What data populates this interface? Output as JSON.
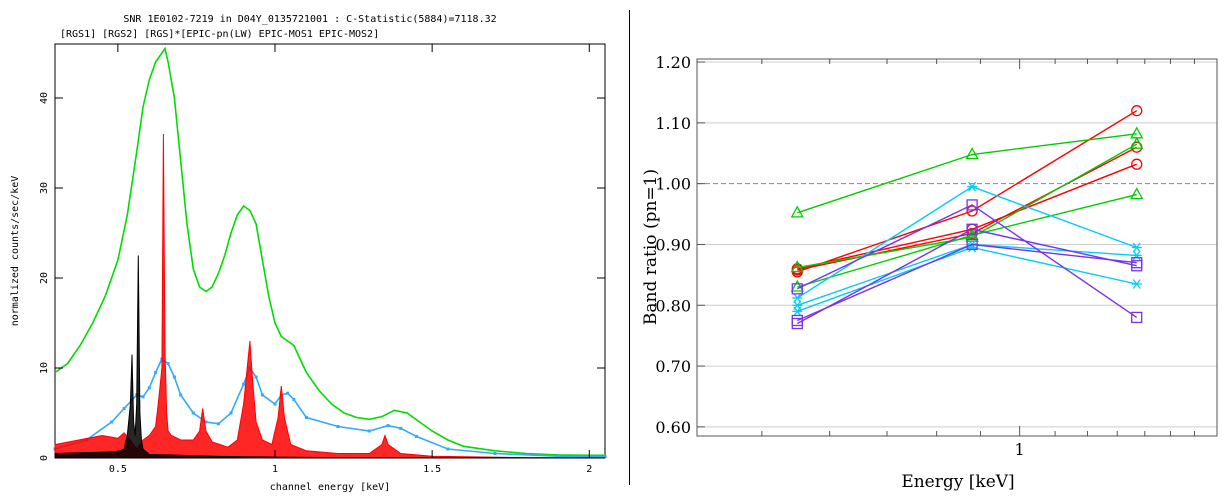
{
  "chart_data": [
    {
      "type": "line",
      "title": "SNR 1E0102-7219 in D04Y_0135721001 : C-Statistic(5884)=7118.32",
      "subtitle": "[RGS1] [RGS2] [RGS]*[EPIC-pn(LW) EPIC-MOS1 EPIC-MOS2]",
      "xlabel": "channel energy [keV]",
      "ylabel": "normalized counts/sec/keV",
      "xlim": [
        0.3,
        2.05
      ],
      "ylim": [
        0,
        46
      ],
      "x_ticks": [
        "0.5",
        "1",
        "1.5",
        "2"
      ],
      "x_tick_values": [
        0.5,
        1.0,
        1.5,
        2.0
      ],
      "y_ticks": [
        "0",
        "10",
        "20",
        "30",
        "40"
      ],
      "y_tick_values": [
        0,
        10,
        20,
        30,
        40
      ],
      "grid": false,
      "series": [
        {
          "color": "#00dd00",
          "x": [
            0.3,
            0.34,
            0.38,
            0.42,
            0.46,
            0.5,
            0.53,
            0.56,
            0.58,
            0.6,
            0.62,
            0.64,
            0.65,
            0.66,
            0.68,
            0.7,
            0.72,
            0.74,
            0.76,
            0.78,
            0.8,
            0.82,
            0.84,
            0.86,
            0.88,
            0.9,
            0.92,
            0.94,
            0.96,
            0.98,
            1.0,
            1.02,
            1.04,
            1.06,
            1.08,
            1.1,
            1.14,
            1.18,
            1.22,
            1.26,
            1.3,
            1.34,
            1.38,
            1.42,
            1.46,
            1.5,
            1.55,
            1.6,
            1.7,
            1.8,
            1.9,
            2.0,
            2.05
          ],
          "y": [
            9.5,
            10.5,
            12.5,
            15,
            18,
            22,
            27,
            34,
            39,
            42,
            44,
            45,
            45.5,
            44,
            40,
            33,
            26,
            21,
            19,
            18.5,
            19,
            20.5,
            22.5,
            25,
            27,
            28,
            27.5,
            26,
            22,
            18,
            15,
            13.5,
            13,
            12.5,
            11,
            9.5,
            7.5,
            6,
            5,
            4.5,
            4.3,
            4.6,
            5.3,
            5,
            4,
            3,
            2,
            1.3,
            0.8,
            0.5,
            0.35,
            0.3,
            0.3
          ]
        },
        {
          "color": "#33aaff",
          "x": [
            0.3,
            0.4,
            0.48,
            0.52,
            0.56,
            0.58,
            0.6,
            0.62,
            0.64,
            0.66,
            0.68,
            0.7,
            0.74,
            0.78,
            0.82,
            0.86,
            0.9,
            0.92,
            0.94,
            0.96,
            1.0,
            1.02,
            1.04,
            1.06,
            1.1,
            1.2,
            1.3,
            1.36,
            1.4,
            1.45,
            1.55,
            1.7,
            1.9,
            2.05
          ],
          "y": [
            1,
            2,
            4,
            5.5,
            7,
            6.8,
            7.8,
            9.5,
            11,
            10.5,
            9,
            7,
            5,
            4,
            3.8,
            5,
            8.2,
            10,
            9,
            7,
            6,
            7,
            7.2,
            6.5,
            4.5,
            3.5,
            3,
            3.6,
            3.3,
            2.4,
            1,
            0.5,
            0.2,
            0.15
          ]
        },
        {
          "color": "#ff0000",
          "x": [
            0.3,
            0.45,
            0.5,
            0.52,
            0.54,
            0.55,
            0.56,
            0.57,
            0.58,
            0.6,
            0.62,
            0.63,
            0.64,
            0.645,
            0.65,
            0.655,
            0.66,
            0.67,
            0.7,
            0.74,
            0.76,
            0.77,
            0.78,
            0.8,
            0.85,
            0.88,
            0.9,
            0.92,
            0.93,
            0.94,
            0.96,
            0.99,
            1.01,
            1.02,
            1.03,
            1.05,
            1.1,
            1.2,
            1.3,
            1.34,
            1.35,
            1.36,
            1.4,
            1.5,
            1.8,
            2.05
          ],
          "y": [
            1.5,
            2.5,
            2.2,
            2.8,
            2,
            1.5,
            1,
            1.5,
            2,
            2.5,
            3.5,
            6.5,
            10,
            36,
            12,
            5,
            3,
            2.5,
            2,
            2,
            3,
            5.5,
            3,
            1.8,
            1.2,
            2,
            6,
            13,
            8,
            4,
            2,
            1.5,
            4.5,
            8,
            4.5,
            1.5,
            0.8,
            0.5,
            0.5,
            1.5,
            2.5,
            1.5,
            0.5,
            0.2,
            0.05,
            0.05
          ]
        },
        {
          "color": "#000000",
          "x": [
            0.3,
            0.5,
            0.52,
            0.53,
            0.54,
            0.545,
            0.55,
            0.555,
            0.56,
            0.565,
            0.57,
            0.575,
            0.58,
            0.6,
            0.7,
            0.8,
            1.0,
            1.2,
            2.05
          ],
          "y": [
            0.5,
            0.7,
            1,
            2.5,
            6,
            11.5,
            4,
            2.5,
            6,
            22.5,
            5,
            2,
            1,
            0.4,
            0.3,
            0.2,
            0.1,
            0.05,
            0
          ]
        }
      ]
    },
    {
      "type": "line",
      "xlabel": "Energy [keV]",
      "ylabel": "Band ratio (pn=1)",
      "xlim": [
        0.42,
        1.7
      ],
      "ylim": [
        0.585,
        1.205
      ],
      "x_ticks": [
        "1"
      ],
      "x_tick_values": [
        1.0
      ],
      "y_ticks": [
        "0.60",
        "0.70",
        "0.80",
        "0.90",
        "1.00",
        "1.10",
        "1.20"
      ],
      "y_tick_values": [
        0.6,
        0.7,
        0.8,
        0.9,
        1.0,
        1.1,
        1.2
      ],
      "grid": true,
      "reference_line": 1.0,
      "x": [
        0.55,
        0.88,
        1.37
      ],
      "series": [
        {
          "color": "#ff0000",
          "marker": "circle",
          "values": [
            0.855,
            0.955,
            1.12
          ]
        },
        {
          "color": "#ff0000",
          "marker": "circle",
          "values": [
            0.858,
            0.918,
            1.06
          ]
        },
        {
          "color": "#ff0000",
          "marker": "circle",
          "values": [
            0.86,
            0.925,
            1.032
          ]
        },
        {
          "color": "#00cc00",
          "marker": "triangle",
          "values": [
            0.952,
            1.048,
            1.082
          ]
        },
        {
          "color": "#00cc00",
          "marker": "triangle",
          "values": [
            0.862,
            0.912,
            1.065
          ]
        },
        {
          "color": "#00cc00",
          "marker": "triangle",
          "values": [
            0.83,
            0.915,
            0.982
          ]
        },
        {
          "color": "#00ccff",
          "marker": "asterisk",
          "values": [
            0.812,
            0.995,
            0.895
          ]
        },
        {
          "color": "#00ccff",
          "marker": "asterisk",
          "values": [
            0.79,
            0.895,
            0.835
          ]
        },
        {
          "color": "#00ccff",
          "marker": "asterisk",
          "values": [
            0.8,
            0.9,
            0.882
          ]
        },
        {
          "color": "#7733ee",
          "marker": "square",
          "values": [
            0.827,
            0.965,
            0.78
          ]
        },
        {
          "color": "#7733ee",
          "marker": "square",
          "values": [
            0.775,
            0.9,
            0.87
          ]
        },
        {
          "color": "#7733ee",
          "marker": "square",
          "values": [
            0.77,
            0.925,
            0.865
          ]
        }
      ]
    }
  ]
}
